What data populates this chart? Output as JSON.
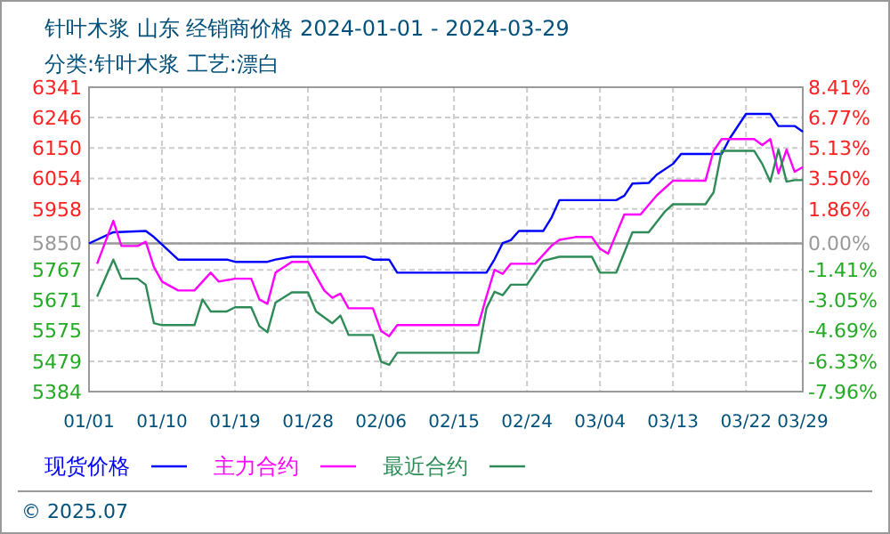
{
  "chart_data": {
    "type": "line",
    "title": "针叶木浆 山东 经销商价格 2024-01-01 - 2024-03-29",
    "subtitle": "分类:针叶木浆 工艺:漂白",
    "annotations": [
      "© 2025.07"
    ],
    "xlim": [
      "2024-01-01",
      "2024-03-29"
    ],
    "xticks": [
      {
        "value": "2024-01-01",
        "label": "01/01"
      },
      {
        "value": "2024-01-10",
        "label": "01/10"
      },
      {
        "value": "2024-01-19",
        "label": "01/19"
      },
      {
        "value": "2024-01-28",
        "label": "01/28"
      },
      {
        "value": "2024-02-06",
        "label": "02/06"
      },
      {
        "value": "2024-02-15",
        "label": "02/15"
      },
      {
        "value": "2024-02-24",
        "label": "02/24"
      },
      {
        "value": "2024-03-04",
        "label": "03/04"
      },
      {
        "value": "2024-03-13",
        "label": "03/13"
      },
      {
        "value": "2024-03-22",
        "label": "03/22"
      },
      {
        "value": "2024-03-29",
        "label": "03/29"
      }
    ],
    "ylim": [
      5384,
      6341
    ],
    "yticks": [
      5384,
      5479,
      5575,
      5671,
      5767,
      5850,
      5958,
      6054,
      6150,
      6246,
      6341
    ],
    "y2lim": [
      -7.96,
      8.41
    ],
    "y2ticks": [
      {
        "value": -7.96,
        "label": "-7.96%"
      },
      {
        "value": -6.33,
        "label": "-6.33%"
      },
      {
        "value": -4.69,
        "label": "-4.69%"
      },
      {
        "value": -3.05,
        "label": "-3.05%"
      },
      {
        "value": -1.41,
        "label": "-1.41%"
      },
      {
        "value": 0,
        "label": "0.00%"
      },
      {
        "value": 1.86,
        "label": "1.86%"
      },
      {
        "value": 3.5,
        "label": "3.50%"
      },
      {
        "value": 5.13,
        "label": "5.13%"
      },
      {
        "value": 6.77,
        "label": "6.77%"
      },
      {
        "value": 8.41,
        "label": "8.41%"
      }
    ],
    "ref_lines": [
      {
        "axis": "y",
        "value": 5850,
        "color": "#999999"
      }
    ],
    "grid": true,
    "legend": "bottom",
    "line_style": "solid",
    "series": [
      {
        "name": "现货价格",
        "color": "#0000ff",
        "x": [
          "2024-01-01",
          "2024-01-04",
          "2024-01-08",
          "2024-01-09",
          "2024-01-12",
          "2024-01-18",
          "2024-01-19",
          "2024-01-23",
          "2024-01-24",
          "2024-01-26",
          "2024-02-04",
          "2024-02-05",
          "2024-02-07",
          "2024-02-08",
          "2024-02-19",
          "2024-02-20",
          "2024-02-21",
          "2024-02-22",
          "2024-02-23",
          "2024-02-26",
          "2024-02-27",
          "2024-02-28",
          "2024-03-06",
          "2024-03-07",
          "2024-03-08",
          "2024-03-10",
          "2024-03-11",
          "2024-03-13",
          "2024-03-14",
          "2024-03-19",
          "2024-03-20",
          "2024-03-22",
          "2024-03-25",
          "2024-03-26",
          "2024-03-28",
          "2024-03-29"
        ],
        "values": [
          5850,
          5885,
          5889,
          5870,
          5799,
          5799,
          5792,
          5792,
          5799,
          5808,
          5808,
          5799,
          5799,
          5758,
          5758,
          5800,
          5851,
          5860,
          5889,
          5889,
          5930,
          5986,
          5986,
          6000,
          6038,
          6040,
          6066,
          6100,
          6131,
          6131,
          6180,
          6257,
          6257,
          6219,
          6219,
          6201
        ]
      },
      {
        "name": "主力合约",
        "color": "#ff00ff",
        "x": [
          "2024-01-02",
          "2024-01-04",
          "2024-01-05",
          "2024-01-07",
          "2024-01-08",
          "2024-01-09",
          "2024-01-10",
          "2024-01-12",
          "2024-01-14",
          "2024-01-15",
          "2024-01-16",
          "2024-01-17",
          "2024-01-19",
          "2024-01-21",
          "2024-01-22",
          "2024-01-23",
          "2024-01-24",
          "2024-01-26",
          "2024-01-28",
          "2024-01-30",
          "2024-01-31",
          "2024-02-01",
          "2024-02-02",
          "2024-02-05",
          "2024-02-06",
          "2024-02-07",
          "2024-02-08",
          "2024-02-18",
          "2024-02-19",
          "2024-02-20",
          "2024-02-21",
          "2024-02-22",
          "2024-02-25",
          "2024-02-27",
          "2024-02-28",
          "2024-03-01",
          "2024-03-03",
          "2024-03-04",
          "2024-03-05",
          "2024-03-07",
          "2024-03-09",
          "2024-03-11",
          "2024-03-13",
          "2024-03-17",
          "2024-03-18",
          "2024-03-19",
          "2024-03-20",
          "2024-03-23",
          "2024-03-24",
          "2024-03-25",
          "2024-03-26",
          "2024-03-27",
          "2024-03-28",
          "2024-03-29"
        ],
        "values": [
          5786,
          5921,
          5842,
          5842,
          5855,
          5776,
          5730,
          5702,
          5702,
          5730,
          5758,
          5730,
          5739,
          5739,
          5674,
          5660,
          5758,
          5792,
          5792,
          5702,
          5679,
          5692,
          5646,
          5646,
          5575,
          5558,
          5593,
          5593,
          5683,
          5767,
          5754,
          5786,
          5786,
          5842,
          5861,
          5870,
          5870,
          5833,
          5818,
          5941,
          5941,
          6001,
          6047,
          6047,
          6141,
          6178,
          6178,
          6178,
          6159,
          6178,
          6070,
          6145,
          6075,
          6090
        ]
      },
      {
        "name": "最近合约",
        "color": "#2e8b57",
        "x": [
          "2024-01-02",
          "2024-01-04",
          "2024-01-05",
          "2024-01-07",
          "2024-01-08",
          "2024-01-09",
          "2024-01-10",
          "2024-01-14",
          "2024-01-15",
          "2024-01-16",
          "2024-01-18",
          "2024-01-19",
          "2024-01-21",
          "2024-01-22",
          "2024-01-23",
          "2024-01-24",
          "2024-01-26",
          "2024-01-28",
          "2024-01-29",
          "2024-01-31",
          "2024-02-01",
          "2024-02-02",
          "2024-02-05",
          "2024-02-06",
          "2024-02-07",
          "2024-02-08",
          "2024-02-18",
          "2024-02-19",
          "2024-02-20",
          "2024-02-21",
          "2024-02-22",
          "2024-02-24",
          "2024-02-26",
          "2024-02-28",
          "2024-03-01",
          "2024-03-03",
          "2024-03-04",
          "2024-03-06",
          "2024-03-08",
          "2024-03-10",
          "2024-03-12",
          "2024-03-13",
          "2024-03-17",
          "2024-03-18",
          "2024-03-19",
          "2024-03-23",
          "2024-03-24",
          "2024-03-25",
          "2024-03-26",
          "2024-03-27",
          "2024-03-28",
          "2024-03-29"
        ],
        "values": [
          5683,
          5799,
          5739,
          5739,
          5720,
          5599,
          5593,
          5593,
          5674,
          5636,
          5636,
          5649,
          5649,
          5590,
          5571,
          5664,
          5696,
          5696,
          5636,
          5599,
          5623,
          5562,
          5562,
          5478,
          5468,
          5506,
          5506,
          5646,
          5698,
          5687,
          5720,
          5720,
          5795,
          5808,
          5808,
          5808,
          5758,
          5758,
          5885,
          5885,
          5950,
          5973,
          5973,
          6010,
          6141,
          6141,
          6100,
          6044,
          6145,
          6044,
          6049,
          6049
        ]
      }
    ]
  }
}
